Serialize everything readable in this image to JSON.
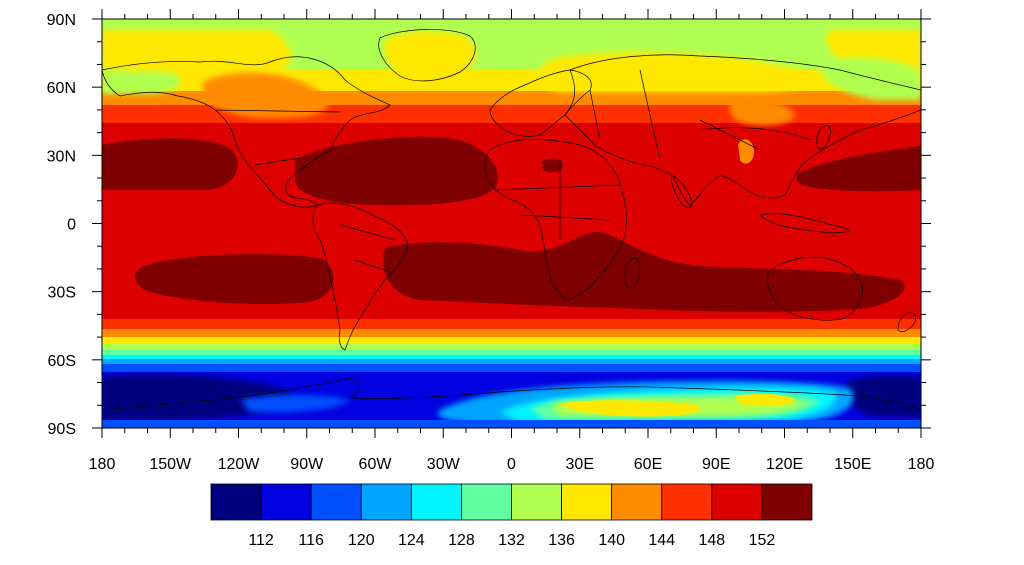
{
  "map": {
    "projection": "cylindrical-equidistant",
    "lon_range": [
      -180,
      180
    ],
    "lat_range": [
      -90,
      90
    ],
    "x_tick_labels": [
      "180",
      "150W",
      "120W",
      "90W",
      "60W",
      "30W",
      "0",
      "30E",
      "60E",
      "90E",
      "120E",
      "150E",
      "180"
    ],
    "x_tick_values": [
      -180,
      -150,
      -120,
      -90,
      -60,
      -30,
      0,
      30,
      60,
      90,
      120,
      150,
      180
    ],
    "y_tick_labels": [
      "90N",
      "60N",
      "30N",
      "0",
      "30S",
      "60S",
      "90S"
    ],
    "y_tick_values": [
      90,
      60,
      30,
      0,
      -30,
      -60,
      -90
    ],
    "show_coastlines": true,
    "show_country_borders": true
  },
  "colorbar": {
    "orientation": "horizontal",
    "placement": "bottom",
    "levels": [
      "112",
      "116",
      "120",
      "124",
      "128",
      "132",
      "136",
      "140",
      "144",
      "148",
      "152"
    ],
    "colors": [
      "#00007f",
      "#0000e0",
      "#0050ff",
      "#00a5ff",
      "#00f5ff",
      "#60ffa0",
      "#b0ff50",
      "#ffe800",
      "#ff8c00",
      "#ff3000",
      "#dd0000",
      "#7f0000"
    ]
  },
  "field_regions": [
    {
      "name": "tropical-band",
      "lat": [
        -45,
        45
      ],
      "value_class": 10
    },
    {
      "name": "subtropical-max-n-pacific-east",
      "lon": [
        -175,
        -130
      ],
      "lat": [
        15,
        37
      ],
      "value_class": 11
    },
    {
      "name": "subtropical-max-n-atlantic",
      "lon": [
        -90,
        -20
      ],
      "lat": [
        8,
        37
      ],
      "value_class": 11
    },
    {
      "name": "subtropical-max-n-pacific-west",
      "lon": [
        105,
        180
      ],
      "lat": [
        15,
        35
      ],
      "value_class": 11
    },
    {
      "name": "subtropical-max-s-pacific",
      "lon": [
        -170,
        -115
      ],
      "lat": [
        -33,
        -13
      ],
      "value_class": 11
    },
    {
      "name": "subtropical-max-s-atlantic-indian",
      "lon": [
        -50,
        175
      ],
      "lat": [
        -37,
        -7
      ],
      "value_class": 11
    },
    {
      "name": "antarctic-minimum",
      "lon": [
        -180,
        180
      ],
      "lat": [
        -90,
        -62
      ],
      "value_class": 0
    }
  ]
}
